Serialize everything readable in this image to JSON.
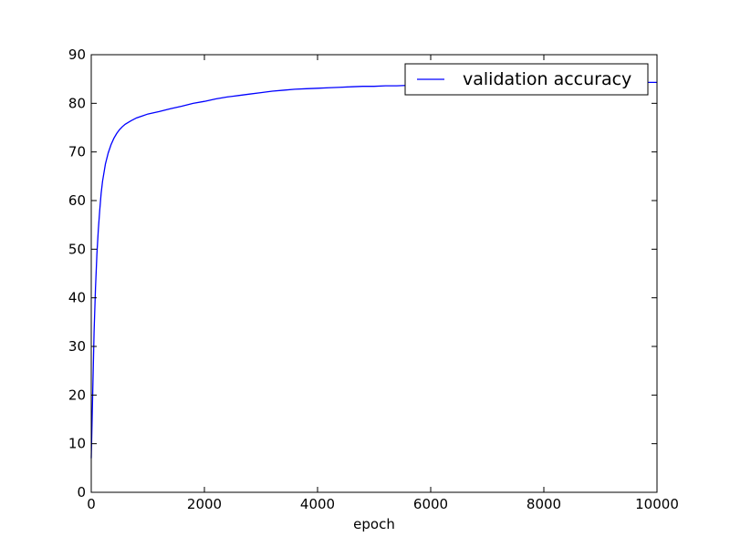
{
  "chart_data": {
    "type": "line",
    "title": "",
    "xlabel": "epoch",
    "ylabel": "",
    "xlim": [
      0,
      10000
    ],
    "ylim": [
      0,
      90
    ],
    "xticks": [
      0,
      2000,
      4000,
      6000,
      8000,
      10000
    ],
    "yticks": [
      0,
      10,
      20,
      30,
      40,
      50,
      60,
      70,
      80,
      90
    ],
    "grid": false,
    "legend": {
      "position": "top-right",
      "entries": [
        "validation accuracy"
      ]
    },
    "series": [
      {
        "name": "validation accuracy",
        "color": "#0000ff",
        "x": [
          0,
          25,
          50,
          75,
          100,
          125,
          150,
          175,
          200,
          250,
          300,
          350,
          400,
          450,
          500,
          550,
          600,
          700,
          800,
          900,
          1000,
          1200,
          1400,
          1600,
          1800,
          2000,
          2200,
          2400,
          2600,
          2800,
          3000,
          3200,
          3400,
          3600,
          3800,
          4000,
          4200,
          4400,
          4600,
          4800,
          5000,
          5200,
          5400,
          5600,
          5800,
          6000,
          6500,
          7000,
          7500,
          8000,
          8500,
          9000,
          9500,
          10000
        ],
        "y": [
          7,
          20,
          33,
          42,
          49,
          54,
          58,
          61.5,
          64,
          67.5,
          69.8,
          71.5,
          72.8,
          73.8,
          74.6,
          75.2,
          75.7,
          76.4,
          77,
          77.4,
          77.8,
          78.3,
          78.9,
          79.4,
          80,
          80.4,
          80.9,
          81.3,
          81.6,
          81.9,
          82.2,
          82.5,
          82.7,
          82.9,
          83,
          83.1,
          83.2,
          83.3,
          83.4,
          83.5,
          83.5,
          83.6,
          83.6,
          83.7,
          83.7,
          83.8,
          83.9,
          84,
          84.1,
          84.1,
          84.2,
          84.2,
          84.3,
          84.3
        ]
      }
    ]
  }
}
